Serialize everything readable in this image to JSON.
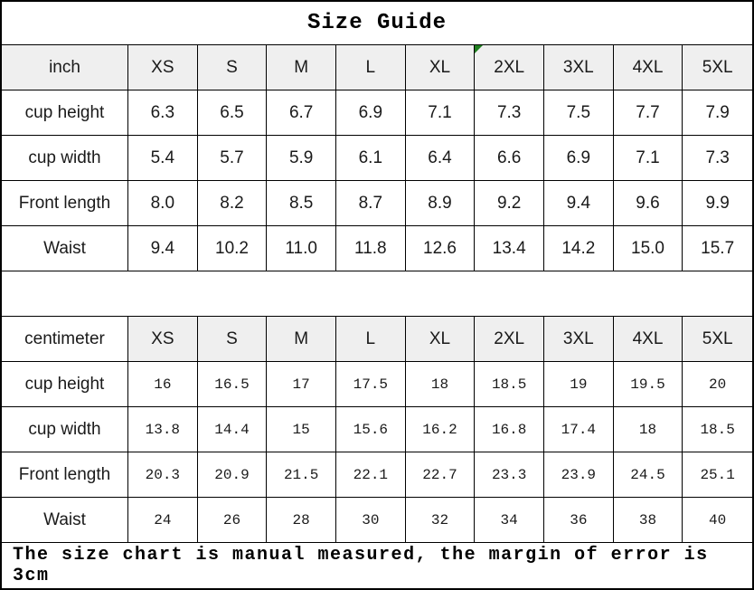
{
  "title": "Size Guide",
  "footer_note": "The size chart is manual measured, the margin of error is 3cm",
  "colors": {
    "border": "#000000",
    "header_bg": "#efefef",
    "marker_green": "#1e7e1e"
  },
  "sizes": [
    "XS",
    "S",
    "M",
    "L",
    "XL",
    "2XL",
    "3XL",
    "4XL",
    "5XL"
  ],
  "marker": {
    "table_index": 0,
    "size": "2XL"
  },
  "tables": [
    {
      "unit_label": "inch",
      "unit_cell_shaded": true,
      "number_style": "sans",
      "rows": [
        {
          "label": "cup height",
          "values": [
            "6.3",
            "6.5",
            "6.7",
            "6.9",
            "7.1",
            "7.3",
            "7.5",
            "7.7",
            "7.9"
          ]
        },
        {
          "label": "cup width",
          "values": [
            "5.4",
            "5.7",
            "5.9",
            "6.1",
            "6.4",
            "6.6",
            "6.9",
            "7.1",
            "7.3"
          ]
        },
        {
          "label": "Front length",
          "values": [
            "8.0",
            "8.2",
            "8.5",
            "8.7",
            "8.9",
            "9.2",
            "9.4",
            "9.6",
            "9.9"
          ]
        },
        {
          "label": "Waist",
          "values": [
            "9.4",
            "10.2",
            "11.0",
            "11.8",
            "12.6",
            "13.4",
            "14.2",
            "15.0",
            "15.7"
          ]
        }
      ]
    },
    {
      "unit_label": "centimeter",
      "unit_cell_shaded": false,
      "number_style": "mono",
      "rows": [
        {
          "label": "cup height",
          "values": [
            "16",
            "16.5",
            "17",
            "17.5",
            "18",
            "18.5",
            "19",
            "19.5",
            "20"
          ]
        },
        {
          "label": "cup width",
          "values": [
            "13.8",
            "14.4",
            "15",
            "15.6",
            "16.2",
            "16.8",
            "17.4",
            "18",
            "18.5"
          ]
        },
        {
          "label": "Front length",
          "values": [
            "20.3",
            "20.9",
            "21.5",
            "22.1",
            "22.7",
            "23.3",
            "23.9",
            "24.5",
            "25.1"
          ]
        },
        {
          "label": "Waist",
          "values": [
            "24",
            "26",
            "28",
            "30",
            "32",
            "34",
            "36",
            "38",
            "40"
          ]
        }
      ]
    }
  ]
}
